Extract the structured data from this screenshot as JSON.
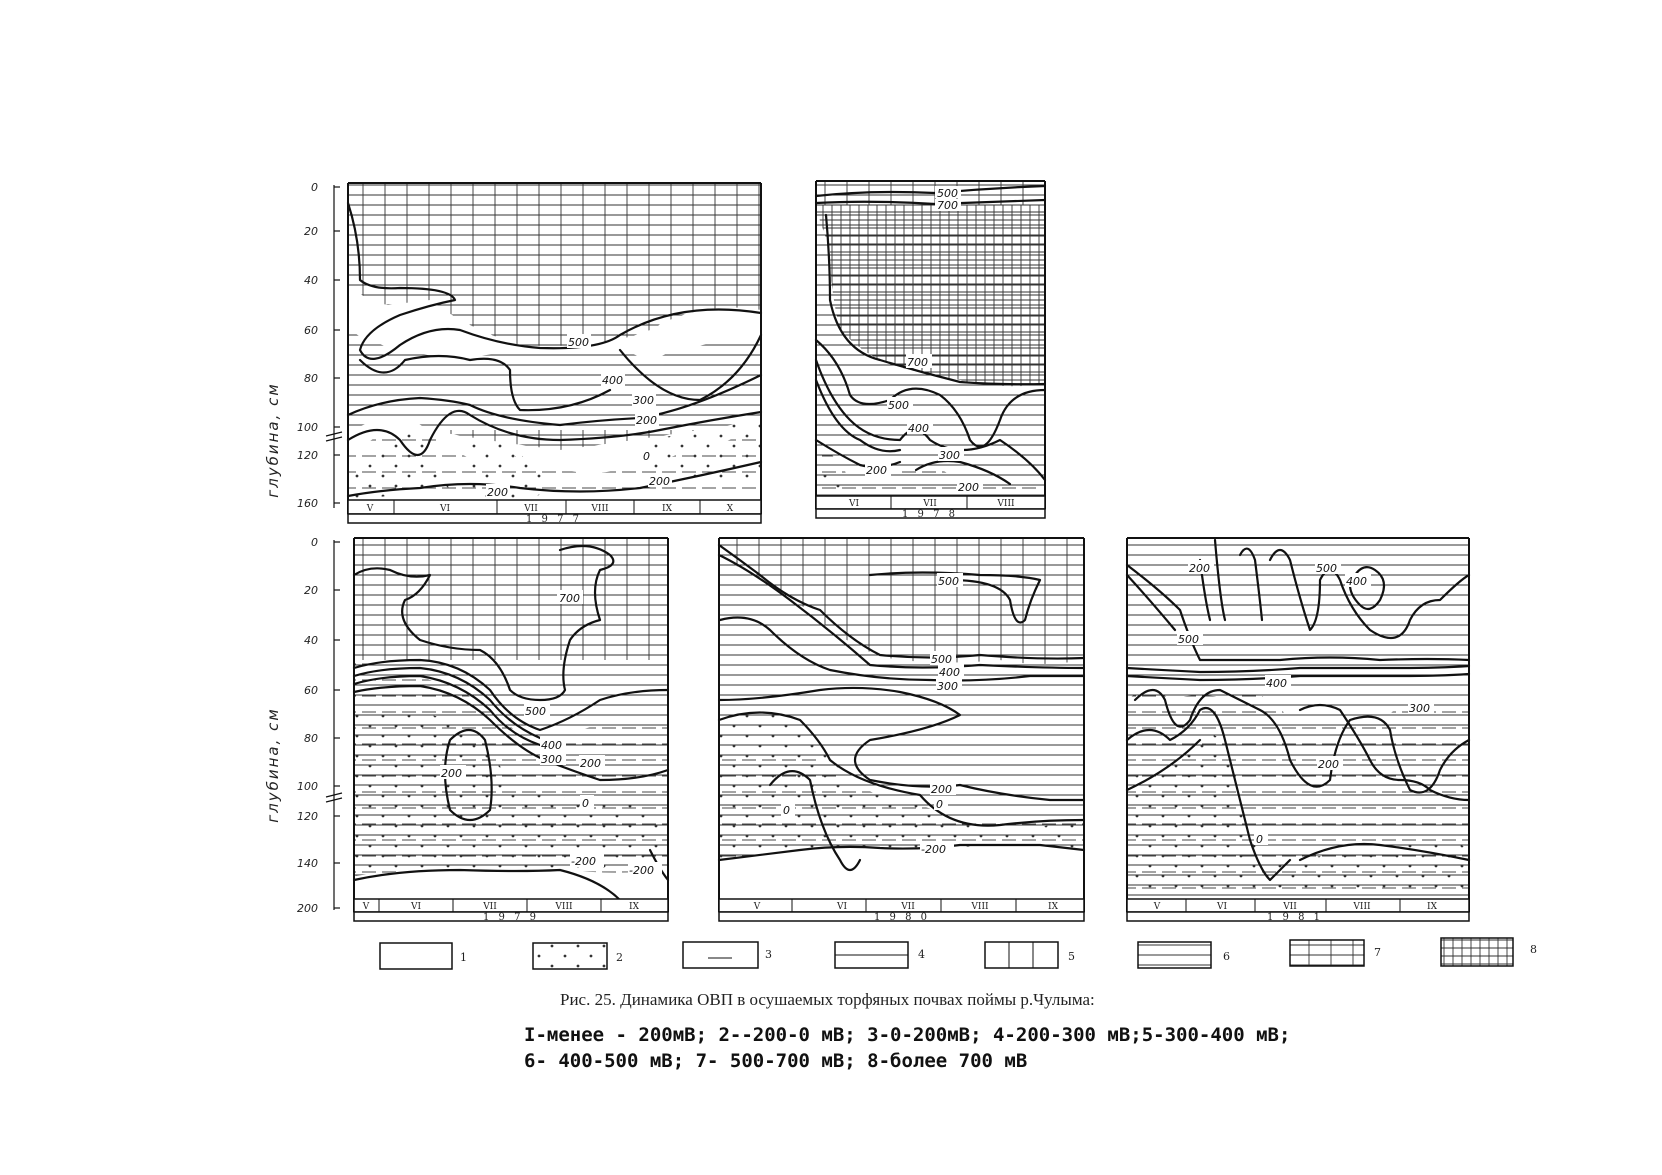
{
  "figure": {
    "ylabel": "глубина, см",
    "patterns": {
      "p5": "vertical lines",
      "p6": "horizontal lines",
      "p7": "fine grid",
      "p8": "dense grid",
      "p2": "dots"
    },
    "panels": [
      {
        "id": "1977",
        "year_label": "1 9 7 7",
        "yticks": [
          "0",
          "20",
          "40",
          "60",
          "80",
          "100",
          "120",
          "160"
        ],
        "months": [
          "V",
          "VI",
          "VII",
          "VIII",
          "IX",
          "X"
        ],
        "isolines": [
          "500",
          "400",
          "300",
          "200",
          "0",
          "200",
          "200"
        ]
      },
      {
        "id": "1978",
        "year_label": "1 9 7 8",
        "yticks": [],
        "months": [
          "VI",
          "VII",
          "VIII"
        ],
        "isolines": [
          "500",
          "700",
          "700",
          "500",
          "400",
          "300",
          "200",
          "200"
        ]
      },
      {
        "id": "1979",
        "year_label": "1 9 7 9",
        "yticks": [
          "0",
          "20",
          "40",
          "60",
          "80",
          "100",
          "120",
          "140",
          "200"
        ],
        "months": [
          "V",
          "VI",
          "VII",
          "VIII",
          "IX"
        ],
        "isolines": [
          "700",
          "500",
          "400",
          "300",
          "200",
          "200",
          "0",
          "-200",
          "-200"
        ]
      },
      {
        "id": "1980",
        "year_label": "1 9 8 0",
        "yticks": [],
        "months": [
          "V",
          "VI",
          "VII",
          "VIII",
          "IX"
        ],
        "isolines": [
          "500",
          "500",
          "400",
          "300",
          "200",
          "0",
          "0",
          "-200"
        ]
      },
      {
        "id": "1981",
        "year_label": "1 9 8 1",
        "yticks": [],
        "months": [
          "V",
          "VI",
          "VII",
          "VIII",
          "IX"
        ],
        "isolines": [
          "200",
          "500",
          "400",
          "500",
          "400",
          "300",
          "200",
          "0"
        ]
      }
    ],
    "legend": [
      "1",
      "2",
      "3",
      "4",
      "5",
      "6",
      "7",
      "8"
    ]
  },
  "caption": {
    "title": "Рис. 25. Динамика ОВП в осушаемых торфяных почвах поймы р.Чулыма:",
    "line1": "I-менее - 200мВ; 2--200-0 мВ; 3-0-200мВ; 4-200-300 мВ;5-300-400 мВ;",
    "line2": "6- 400-500 мВ; 7- 500-700 мВ; 8-более 700 мВ"
  }
}
